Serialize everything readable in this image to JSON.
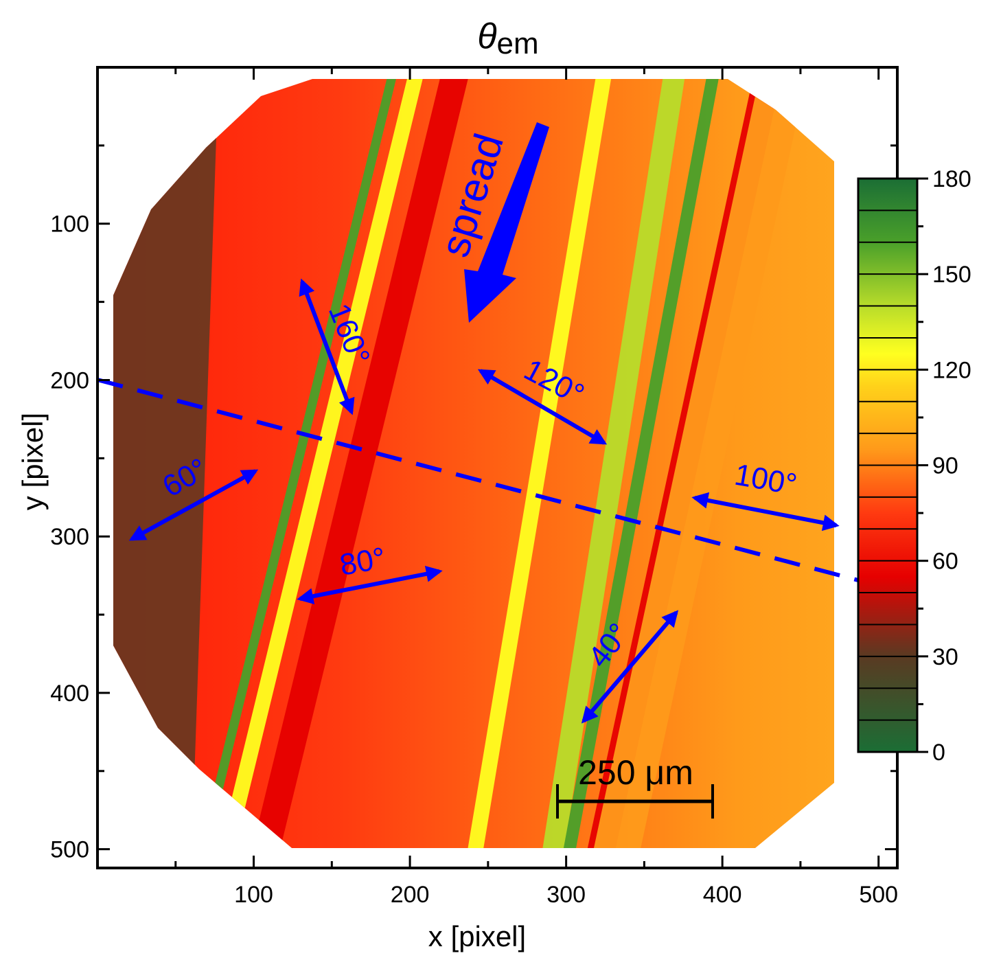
{
  "chart_data": {
    "type": "heatmap",
    "title": "θ",
    "title_subscript": "em",
    "xlabel": "x [pixel]",
    "ylabel": "y [pixel]",
    "xlim": [
      0,
      512
    ],
    "ylim": [
      512,
      0
    ],
    "x_ticks": [
      100,
      200,
      300,
      400,
      500
    ],
    "y_ticks": [
      100,
      200,
      300,
      400,
      500
    ],
    "colorbar": {
      "range": [
        0,
        180
      ],
      "ticks": [
        0,
        30,
        60,
        90,
        120,
        150,
        180
      ],
      "stops": [
        {
          "value": 0,
          "color": "#1b6e35"
        },
        {
          "value": 30,
          "color": "#5a3a22"
        },
        {
          "value": 55,
          "color": "#e60000"
        },
        {
          "value": 75,
          "color": "#ff3a10"
        },
        {
          "value": 95,
          "color": "#ff9a1a"
        },
        {
          "value": 115,
          "color": "#ffd21a"
        },
        {
          "value": 125,
          "color": "#ffff20"
        },
        {
          "value": 140,
          "color": "#b8dc2a"
        },
        {
          "value": 160,
          "color": "#4aa02a"
        },
        {
          "value": 180,
          "color": "#1b6e35"
        }
      ]
    },
    "stripes": [
      {
        "x_at_y0": 0,
        "x_at_y512": 0,
        "width": 60,
        "value": 25
      },
      {
        "x_at_y0": 190,
        "x_at_y512": 65,
        "width": 6,
        "value": 165
      },
      {
        "x_at_y0": 205,
        "x_at_y512": 80,
        "width": 10,
        "value": 125
      },
      {
        "x_at_y0": 230,
        "x_at_y512": 105,
        "width": 18,
        "value": 60
      },
      {
        "x_at_y0": 325,
        "x_at_y512": 240,
        "width": 10,
        "value": 125
      },
      {
        "x_at_y0": 370,
        "x_at_y512": 290,
        "width": 14,
        "value": 150
      },
      {
        "x_at_y0": 395,
        "x_at_y512": 300,
        "width": 8,
        "value": 165
      },
      {
        "x_at_y0": 430,
        "x_at_y512": 320,
        "width": 18,
        "value": 50
      },
      {
        "x_at_y0": 440,
        "x_at_y512": 330,
        "width": 30,
        "value": 100
      }
    ],
    "annotations": [
      {
        "text": "spread",
        "kind": "flow-arrow"
      },
      {
        "text": "160°"
      },
      {
        "text": "120°"
      },
      {
        "text": "100°"
      },
      {
        "text": "80°"
      },
      {
        "text": "60°"
      },
      {
        "text": "40°"
      }
    ],
    "scale_bar": {
      "label": "250 μm",
      "length_x": 100
    }
  }
}
